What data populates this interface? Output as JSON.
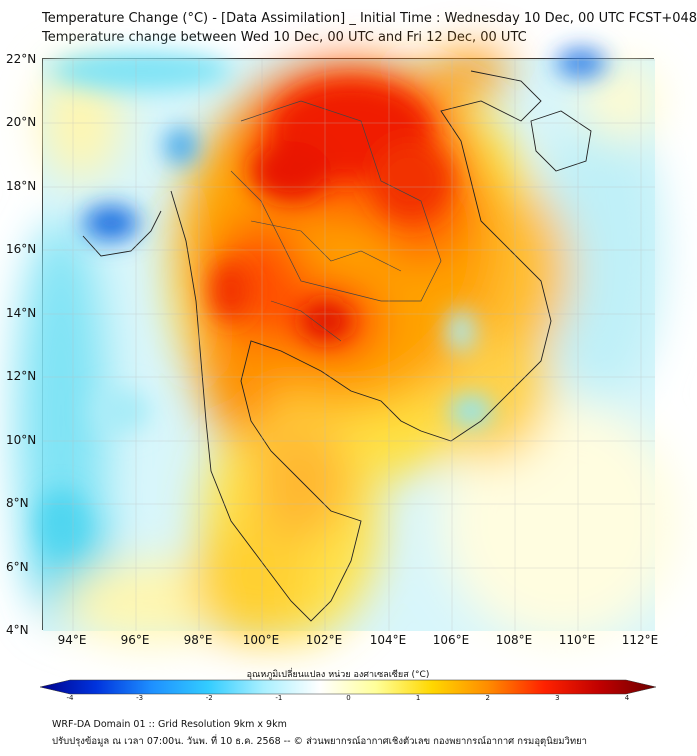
{
  "header": {
    "title_line1": "Temperature Change (°C) - [Data Assimilation] _ Initial Time : Wednesday 10 Dec, 00 UTC FCST+048",
    "title_line2": "Temperature change between Wed 10 Dec, 00 UTC and Fri 12 Dec, 00 UTC"
  },
  "map": {
    "lat_labels": [
      "22°N",
      "20°N",
      "18°N",
      "16°N",
      "14°N",
      "12°N",
      "10°N",
      "8°N",
      "6°N",
      "4°N"
    ],
    "lon_labels": [
      "94°E",
      "96°E",
      "98°E",
      "100°E",
      "102°E",
      "104°E",
      "106°E",
      "108°E",
      "110°E",
      "112°E"
    ]
  },
  "colorbar": {
    "label": "อุณหภูมิเปลี่ยนแปลง หน่วย องศาเซลเซียส (°C)",
    "ticks": [
      "-4",
      "-3",
      "-2",
      "-1",
      "0",
      "1",
      "2",
      "3",
      "4"
    ],
    "range": [
      -4,
      4
    ],
    "colors": [
      "#00008b",
      "#0033dd",
      "#1e90ff",
      "#33ccff",
      "#aaf0ff",
      "#ffffff",
      "#ffff99",
      "#ffd700",
      "#ff8c00",
      "#ff2200",
      "#c00000",
      "#6b0000"
    ]
  },
  "footer": {
    "line1": "WRF-DA Domain 01 :: Grid Resolution 9km x 9km",
    "line2": "ปรับปรุงข้อมูล ณ เวลา 07:00น. วันพ. ที่ 10 ธ.ค. 2568 -- © ส่วนพยากรณ์อากาศเชิงตัวเลข กองพยากรณ์อากาศ กรมอุตุนิยมวิทยา"
  }
}
